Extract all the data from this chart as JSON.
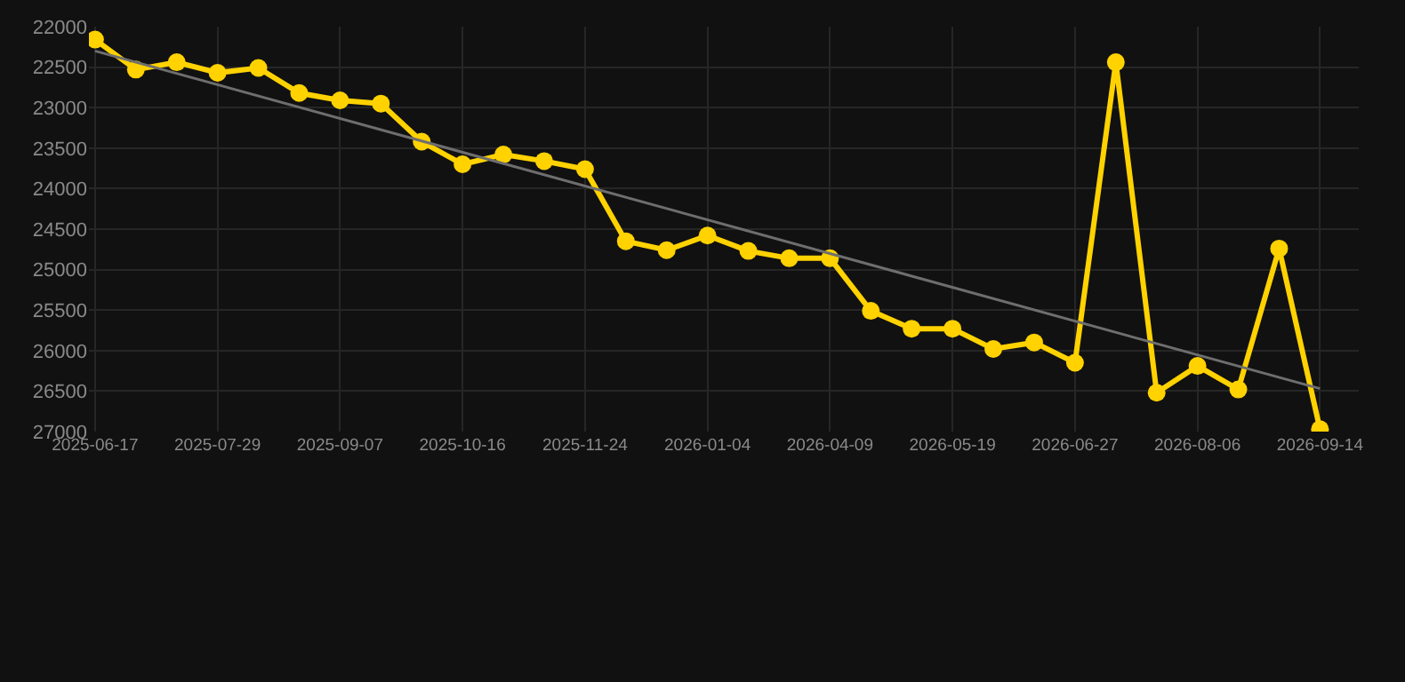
{
  "chart_data": {
    "type": "line",
    "categories": [
      "2025-06-17",
      null,
      null,
      "2025-07-29",
      null,
      null,
      "2025-09-07",
      null,
      null,
      "2025-10-16",
      null,
      null,
      "2025-11-24",
      null,
      null,
      "2026-01-04",
      null,
      null,
      "2026-04-09",
      null,
      null,
      "2026-05-19",
      null,
      null,
      "2026-06-27",
      null,
      null,
      "2026-08-06",
      null,
      null,
      "2026-09-14"
    ],
    "series": [
      {
        "color": "#ffd200",
        "marker": "circle",
        "values": [
          22160,
          22530,
          22440,
          22570,
          22510,
          22820,
          22910,
          22950,
          23420,
          23700,
          23580,
          23660,
          23760,
          24650,
          24760,
          24580,
          24770,
          24860,
          24860,
          25510,
          25730,
          25730,
          25980,
          25900,
          26150,
          22440,
          26520,
          26190,
          26480,
          24740,
          26970
        ]
      },
      {
        "color": "#6e6e6e",
        "marker": "none",
        "values": [
          22300,
          null,
          null,
          null,
          null,
          null,
          null,
          null,
          null,
          null,
          null,
          null,
          null,
          null,
          null,
          null,
          null,
          null,
          null,
          null,
          null,
          null,
          null,
          null,
          null,
          null,
          null,
          null,
          null,
          null,
          26470
        ]
      }
    ],
    "ylim": [
      27000,
      22000
    ],
    "yticks": [
      22000,
      22500,
      23000,
      23500,
      24000,
      24500,
      25000,
      25500,
      26000,
      26500,
      27000
    ],
    "grid": true
  }
}
